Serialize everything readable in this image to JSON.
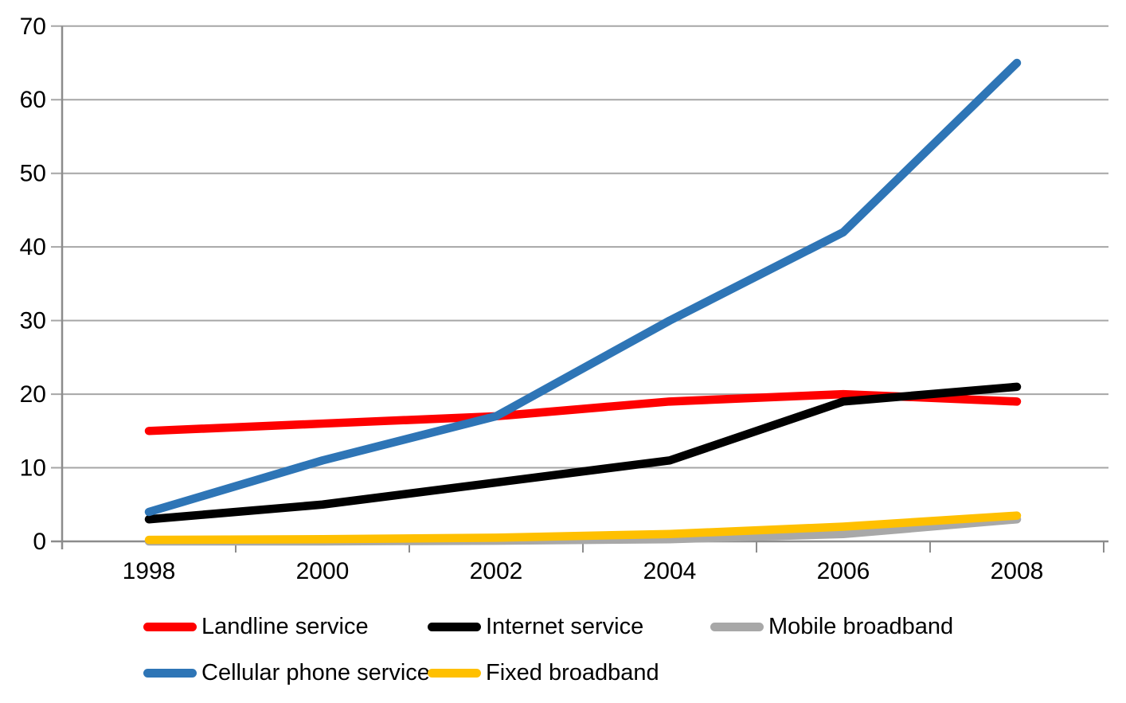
{
  "chart_data": {
    "type": "line",
    "title": "",
    "xlabel": "",
    "ylabel": "",
    "categories": [
      "1998",
      "2000",
      "2002",
      "2004",
      "2006",
      "2008"
    ],
    "yticks": [
      "0",
      "10",
      "20",
      "30",
      "40",
      "50",
      "60",
      "70"
    ],
    "ylim": [
      0,
      70
    ],
    "ytick_step": 10,
    "grid": true,
    "legend_position": "bottom",
    "series": [
      {
        "name": "Landline service",
        "color": "#fe0000",
        "values": [
          15,
          16,
          17,
          19,
          20,
          19
        ]
      },
      {
        "name": "Internet service",
        "color": "#000000",
        "values": [
          3,
          5,
          8,
          11,
          19,
          21
        ]
      },
      {
        "name": "Mobile broadband",
        "color": "#a8a8a8",
        "values": [
          0,
          0,
          0.1,
          0.3,
          1,
          3
        ]
      },
      {
        "name": "Cellular phone service",
        "color": "#2e75b6",
        "values": [
          4,
          11,
          17,
          30,
          42,
          65
        ]
      },
      {
        "name": "Fixed broadband",
        "color": "#ffc000",
        "values": [
          0.2,
          0.3,
          0.5,
          1,
          2,
          3.5
        ]
      }
    ],
    "colors": {
      "gridline": "#a6a6a6",
      "axis": "#8c8c8c",
      "text": "#000000",
      "background": "#ffffff"
    }
  }
}
